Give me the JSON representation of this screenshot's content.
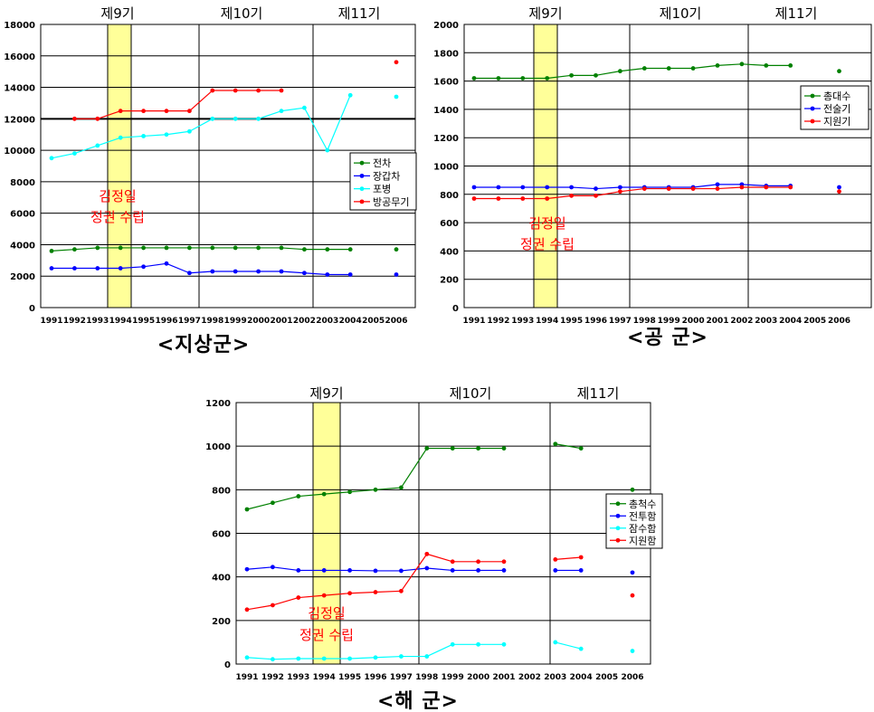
{
  "chart_data": [
    {
      "type": "line",
      "title": "<지상군>",
      "x": [
        "1991",
        "1992",
        "1993",
        "1994",
        "1995",
        "1996",
        "1997",
        "1998",
        "1999",
        "2000",
        "2001",
        "2002",
        "2003",
        "2004",
        "2005",
        "2006"
      ],
      "ylim": [
        0,
        18000
      ],
      "yticks": [
        "0",
        "2000",
        "4000",
        "6000",
        "8000",
        "10000",
        "12000",
        "14000",
        "16000",
        "18000"
      ],
      "periods": [
        "제9기",
        "제10기",
        "제11기"
      ],
      "annotation": [
        "김정일",
        "정권 수립"
      ],
      "legend_position": "right",
      "series": [
        {
          "name": "전차",
          "color": "#008000",
          "values": [
            3600,
            3700,
            3800,
            3800,
            3800,
            3800,
            3800,
            3800,
            3800,
            3800,
            3800,
            3700,
            3700,
            3700,
            null,
            3700
          ]
        },
        {
          "name": "장갑차",
          "color": "#0000ff",
          "values": [
            2500,
            2500,
            2500,
            2500,
            2600,
            2800,
            2200,
            2300,
            2300,
            2300,
            2300,
            2200,
            2100,
            2100,
            null,
            2100
          ]
        },
        {
          "name": "포병",
          "color": "#00ffff",
          "values": [
            9500,
            9800,
            10300,
            10800,
            10900,
            11000,
            11200,
            12000,
            12000,
            12000,
            12500,
            12700,
            10000,
            13500,
            null,
            13400
          ]
        },
        {
          "name": "방공무기",
          "color": "#ff0000",
          "values": [
            null,
            12000,
            12000,
            12500,
            12500,
            12500,
            12500,
            13800,
            13800,
            13800,
            13800,
            null,
            null,
            null,
            null,
            15600
          ]
        }
      ]
    },
    {
      "type": "line",
      "title": "<공 군>",
      "x": [
        "1991",
        "1992",
        "1993",
        "1994",
        "1995",
        "1996",
        "1997",
        "1998",
        "1999",
        "2000",
        "2001",
        "2002",
        "2003",
        "2004",
        "2005",
        "2006"
      ],
      "ylim": [
        0,
        2000
      ],
      "yticks": [
        "0",
        "200",
        "400",
        "600",
        "800",
        "1000",
        "1200",
        "1400",
        "1600",
        "1800",
        "2000"
      ],
      "periods": [
        "제9기",
        "제10기",
        "제11기"
      ],
      "annotation": [
        "김정일",
        "정권 수립"
      ],
      "legend_position": "top-right",
      "series": [
        {
          "name": "총대수",
          "color": "#008000",
          "values": [
            1620,
            1620,
            1620,
            1620,
            1640,
            1640,
            1670,
            1690,
            1690,
            1690,
            1710,
            1720,
            1710,
            1710,
            null,
            1670
          ]
        },
        {
          "name": "전술기",
          "color": "#0000ff",
          "values": [
            850,
            850,
            850,
            850,
            850,
            840,
            850,
            850,
            850,
            850,
            870,
            870,
            860,
            860,
            null,
            850
          ]
        },
        {
          "name": "지원기",
          "color": "#ff0000",
          "values": [
            770,
            770,
            770,
            770,
            790,
            790,
            820,
            840,
            840,
            840,
            840,
            850,
            850,
            850,
            null,
            820
          ]
        }
      ]
    },
    {
      "type": "line",
      "title": "<해 군>",
      "x": [
        "1991",
        "1992",
        "1993",
        "1994",
        "1995",
        "1996",
        "1997",
        "1998",
        "1999",
        "2000",
        "2001",
        "2002",
        "2003",
        "2004",
        "2005",
        "2006"
      ],
      "ylim": [
        0,
        1200
      ],
      "yticks": [
        "0",
        "200",
        "400",
        "600",
        "800",
        "1000",
        "1200"
      ],
      "periods": [
        "제9기",
        "제10기",
        "제11기"
      ],
      "annotation": [
        "김정일",
        "정권 수립"
      ],
      "legend_position": "right",
      "series": [
        {
          "name": "총척수",
          "color": "#008000",
          "values": [
            710,
            740,
            770,
            780,
            790,
            800,
            810,
            990,
            990,
            990,
            990,
            null,
            1010,
            990,
            null,
            800
          ]
        },
        {
          "name": "전투함",
          "color": "#0000ff",
          "values": [
            435,
            445,
            430,
            430,
            430,
            428,
            428,
            440,
            430,
            430,
            430,
            null,
            430,
            430,
            null,
            420
          ]
        },
        {
          "name": "잠수함",
          "color": "#00ffff",
          "values": [
            30,
            22,
            25,
            25,
            25,
            30,
            35,
            35,
            90,
            90,
            90,
            null,
            100,
            70,
            null,
            60
          ]
        },
        {
          "name": "지원함",
          "color": "#ff0000",
          "values": [
            250,
            270,
            305,
            315,
            325,
            330,
            335,
            505,
            470,
            470,
            470,
            null,
            480,
            490,
            null,
            315
          ]
        }
      ]
    }
  ]
}
